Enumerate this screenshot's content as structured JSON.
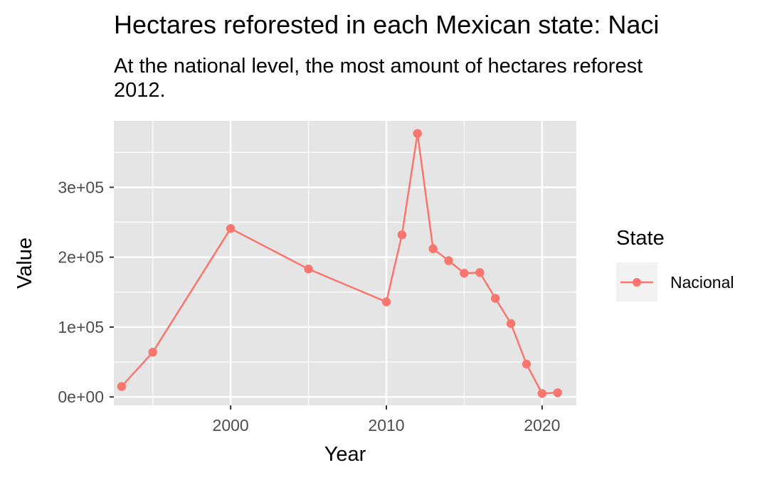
{
  "chart_data": {
    "type": "line",
    "title": "Hectares reforested in each Mexican state: Naci",
    "subtitle": "At the national level, the most amount of hectares reforest 2012.",
    "subtitle_lines": [
      "At the national level, the most amount of hectares reforest",
      "2012."
    ],
    "xlabel": "Year",
    "ylabel": "Value",
    "xlim": [
      1992.5,
      2022.2
    ],
    "ylim": [
      -12000,
      395000
    ],
    "x_ticks": [
      2000,
      2010,
      2020
    ],
    "x_tick_labels": [
      "2000",
      "2010",
      "2020"
    ],
    "y_ticks": [
      0,
      100000,
      200000,
      300000
    ],
    "y_tick_labels": [
      "0e+00",
      "1e+05",
      "2e+05",
      "3e+05"
    ],
    "grid": true,
    "legend": {
      "title": "State",
      "position": "right"
    },
    "series": [
      {
        "name": "Nacional",
        "color": "#F8766D",
        "x": [
          1993,
          1995,
          2000,
          2005,
          2010,
          2011,
          2012,
          2013,
          2014,
          2015,
          2016,
          2017,
          2018,
          2019,
          2020,
          2021
        ],
        "values": [
          15000,
          64000,
          241000,
          183000,
          136000,
          232000,
          377000,
          212000,
          195000,
          177000,
          178000,
          141000,
          105000,
          47000,
          5000,
          6000
        ]
      }
    ]
  }
}
